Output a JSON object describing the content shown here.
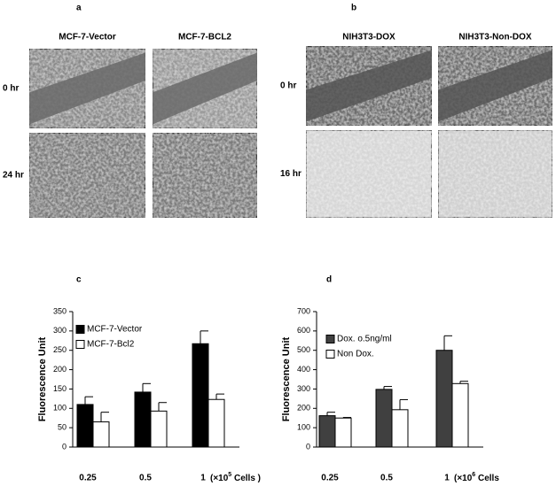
{
  "figure": {
    "panel_a": {
      "label": "a",
      "columns": [
        "MCF-7-Vector",
        "MCF-7-BCL2"
      ],
      "rows": [
        "0 hr",
        "24 hr"
      ]
    },
    "panel_b": {
      "label": "b",
      "columns": [
        "NIH3T3-DOX",
        "NIH3T3-Non-DOX"
      ],
      "rows": [
        "0 hr",
        "16 hr"
      ]
    },
    "chart_labels": [
      "c",
      "d"
    ]
  },
  "chart_data": [
    {
      "type": "bar",
      "y_label": "Fluorescence Unit",
      "categories": [
        "0.25",
        "0.5",
        "1"
      ],
      "x_unit": {
        "prefix": "(×10",
        "sup": "5",
        "suffix": " Cells )"
      },
      "ylim": [
        0,
        350
      ],
      "yticks": [
        0,
        50,
        100,
        150,
        200,
        250,
        300,
        350
      ],
      "series": [
        {
          "name": "MCF-7-Vector",
          "color": "#000000",
          "values": [
            110,
            142,
            267
          ],
          "errors": [
            20,
            22,
            33
          ]
        },
        {
          "name": "MCF-7-Bcl2",
          "color": "#ffffff",
          "values": [
            65,
            93,
            123
          ],
          "errors": [
            25,
            22,
            14
          ]
        }
      ]
    },
    {
      "type": "bar",
      "y_label": "Fluorescence Unit",
      "categories": [
        "0.25",
        "0.5",
        "1"
      ],
      "x_unit": {
        "prefix": "(×10",
        "sup": "6",
        "suffix": " Cells"
      },
      "ylim": [
        0,
        700
      ],
      "yticks": [
        0,
        100,
        200,
        300,
        400,
        500,
        600,
        700
      ],
      "series": [
        {
          "name": "Dox. o.5ng/ml",
          "color": "#404040",
          "values": [
            162,
            298,
            500
          ],
          "errors": [
            18,
            15,
            75
          ]
        },
        {
          "name": "Non Dox.",
          "color": "#ffffff",
          "values": [
            150,
            193,
            328
          ],
          "errors": [
            3,
            52,
            12
          ]
        }
      ]
    }
  ]
}
